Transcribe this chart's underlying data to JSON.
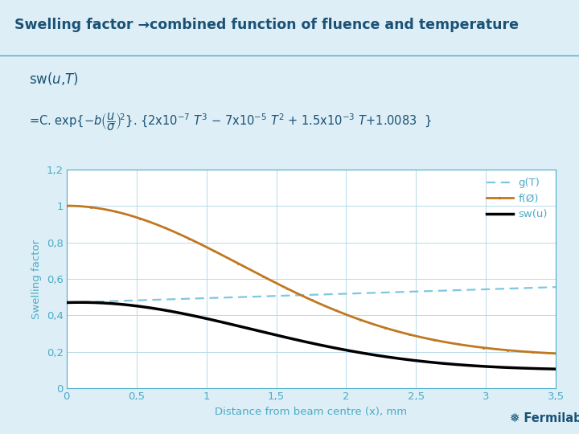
{
  "title": "Swelling factor →combined function of fluence and temperature",
  "title_color": "#1a5276",
  "bg_color": "#ffffff",
  "slide_bg": "#ddeef6",
  "plot_bg_color": "#ffffff",
  "xlabel": "Distance from beam centre (x), mm",
  "ylabel": "Swelling factor",
  "xlim": [
    0,
    3.5
  ],
  "ylim": [
    0,
    1.2
  ],
  "xticks": [
    0,
    0.5,
    1.0,
    1.5,
    2.0,
    2.5,
    3.0,
    3.5
  ],
  "yticks": [
    0,
    0.2,
    0.4,
    0.6,
    0.8,
    1.0,
    1.2
  ],
  "xtick_labels": [
    "0",
    "0,5",
    "1",
    "1,5",
    "2",
    "2,5",
    "3",
    "3,5"
  ],
  "ytick_labels": [
    "0",
    "0,2",
    "0,4",
    "0,6",
    "0,8",
    "1",
    "1,2"
  ],
  "tick_color": "#4bacc6",
  "axis_color": "#4bacc6",
  "grid_color": "#b8d9e8",
  "gT_color": "#7dc7e0",
  "fO_color": "#c07820",
  "sw_color": "#000000",
  "formula_color": "#1a5276",
  "fermilab_bar_color": "#85c1d6",
  "fermilab_text_color": "#1a5276"
}
